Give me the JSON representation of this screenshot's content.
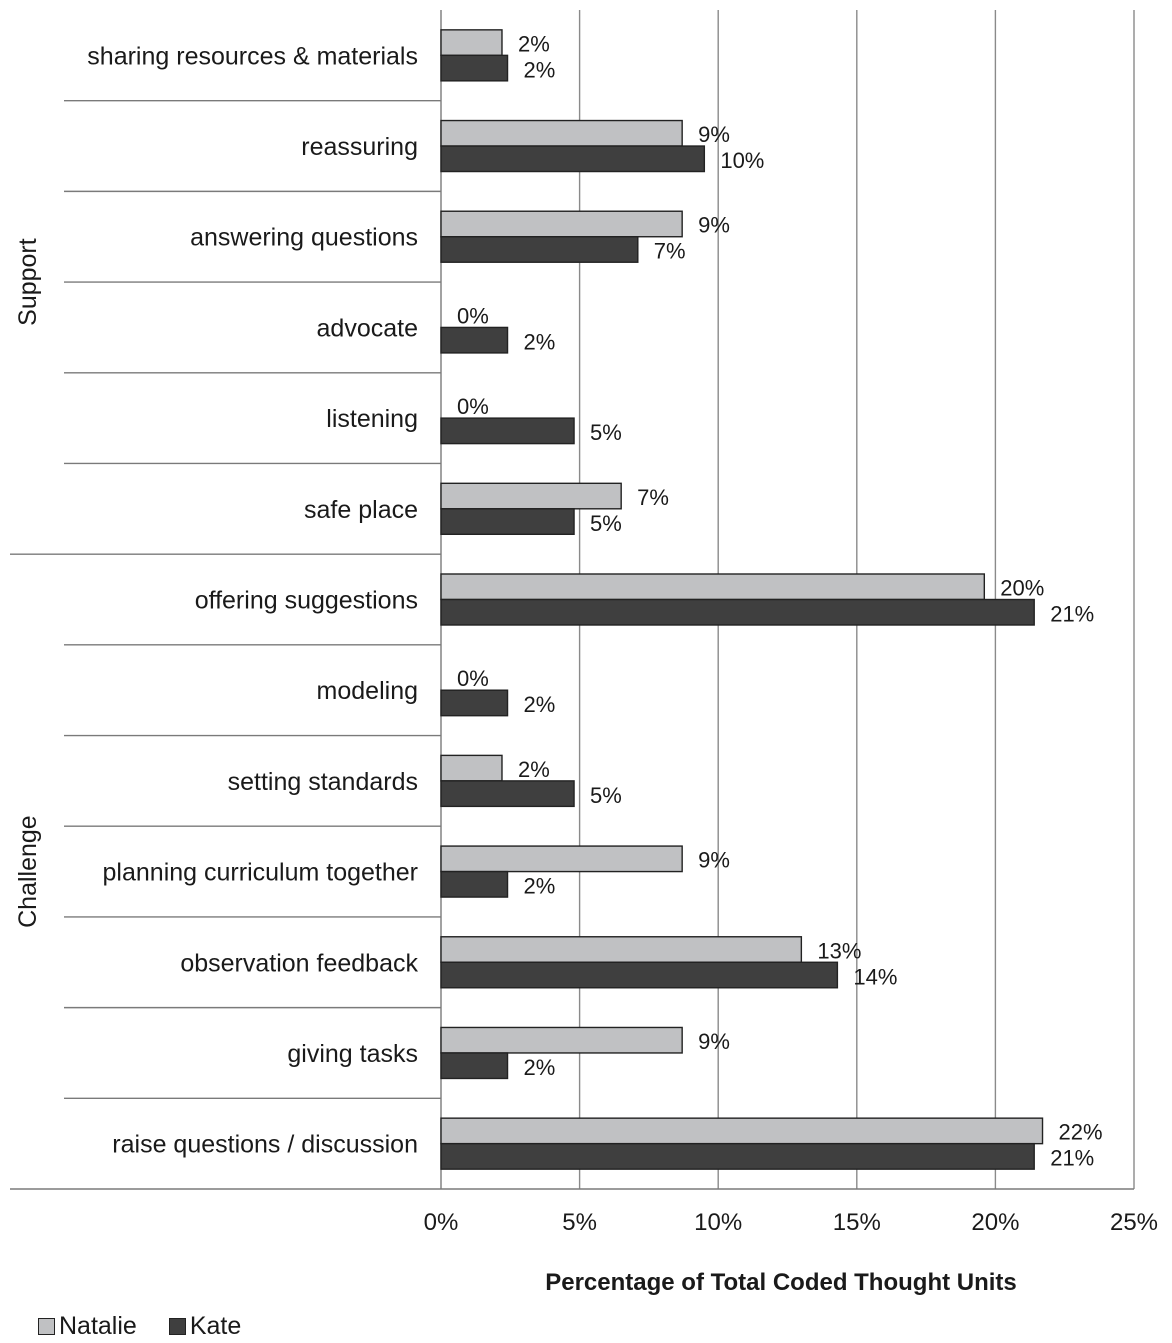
{
  "chart_data": {
    "type": "bar",
    "orientation": "horizontal",
    "groups": [
      {
        "name": "Support",
        "categories": [
          "sharing resources & materials",
          "reassuring",
          "answering questions",
          "advocate",
          "listening",
          "safe place"
        ]
      },
      {
        "name": "Challenge",
        "categories": [
          "offering suggestions",
          "modeling",
          "setting standards",
          "planning curriculum together",
          "observation feedback",
          "giving tasks",
          "raise questions / discussion"
        ]
      }
    ],
    "categories": [
      "sharing resources & materials",
      "reassuring",
      "answering questions",
      "advocate",
      "listening",
      "safe place",
      "offering suggestions",
      "modeling",
      "setting standards",
      "planning curriculum together",
      "observation feedback",
      "giving tasks",
      "raise questions / discussion"
    ],
    "series": [
      {
        "name": "Natalie",
        "color": "#c0c1c3",
        "values": [
          2.2,
          8.7,
          8.7,
          0,
          0,
          6.5,
          19.6,
          0,
          2.2,
          8.7,
          13.0,
          8.7,
          21.7
        ],
        "labels": [
          "2%",
          "9%",
          "9%",
          "0%",
          "0%",
          "7%",
          "20%",
          "0%",
          "2%",
          "9%",
          "13%",
          "9%",
          "22%"
        ]
      },
      {
        "name": "Kate",
        "color": "#3f3f3f",
        "values": [
          2.4,
          9.5,
          7.1,
          2.4,
          4.8,
          4.8,
          21.4,
          2.4,
          4.8,
          2.4,
          14.3,
          2.4,
          21.4
        ],
        "labels": [
          "2%",
          "10%",
          "7%",
          "2%",
          "5%",
          "5%",
          "21%",
          "2%",
          "5%",
          "2%",
          "14%",
          "2%",
          "21%"
        ]
      }
    ],
    "xlabel": "Percentage of Total Coded Thought Units",
    "xlim": [
      0,
      25
    ],
    "xticks": [
      "0%",
      "5%",
      "10%",
      "15%",
      "20%",
      "25%"
    ],
    "grid": true,
    "legend_position": "bottom-left"
  }
}
